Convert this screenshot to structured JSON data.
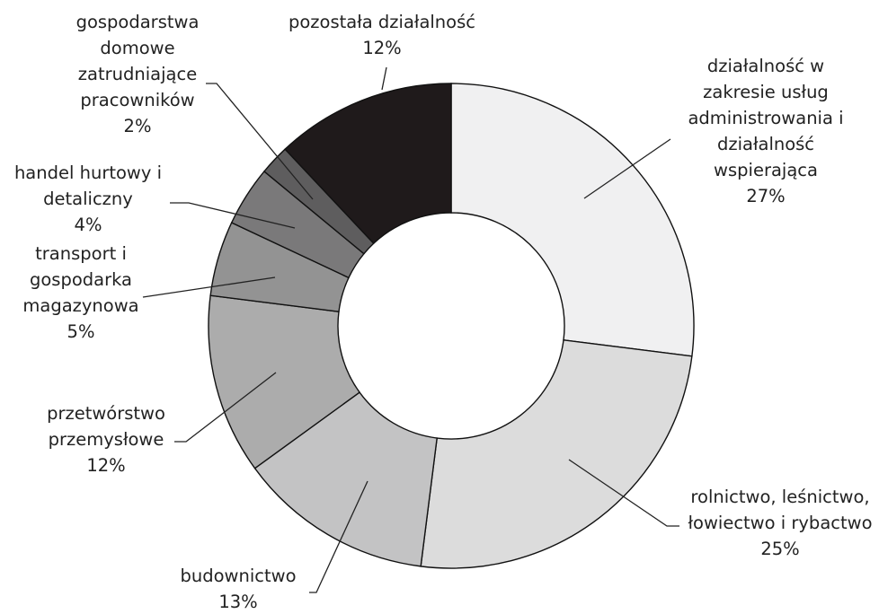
{
  "chart_data": {
    "type": "pie",
    "title": "",
    "slices": [
      {
        "label": "działalność w zakresie usług administrowania i działalność wspierająca",
        "value": 27,
        "value_label": "27%",
        "color": "#f0f0f1"
      },
      {
        "label": "rolnictwo, leśnictwo, łowiectwo i rybactwo",
        "value": 25,
        "value_label": "25%",
        "color": "#dcdcdc"
      },
      {
        "label": "budownictwo",
        "value": 13,
        "value_label": "13%",
        "color": "#c3c3c4"
      },
      {
        "label": "przetwórstwo przemysłowe",
        "value": 12,
        "value_label": "12%",
        "color": "#acacac"
      },
      {
        "label": "transport i gospodarka magazynowa",
        "value": 5,
        "value_label": "5%",
        "color": "#939393"
      },
      {
        "label": "handel hurtowy i detaliczny",
        "value": 4,
        "value_label": "4%",
        "color": "#7a797a"
      },
      {
        "label": "gospodarstwa domowe zatrudniające pracowników",
        "value": 2,
        "value_label": "2%",
        "color": "#5e5d5e"
      },
      {
        "label": "pozostała działalność",
        "value": 12,
        "value_label": "12%",
        "color": "#1f1a1b"
      }
    ],
    "label_lines": [
      [
        "działalność w",
        "zakresie usług",
        "administrowania i",
        "działalność",
        "wspierająca",
        "27%"
      ],
      [
        "rolnictwo, leśnictwo,",
        "łowiectwo i rybactwo",
        "25%"
      ],
      [
        "budownictwo",
        "13%"
      ],
      [
        "przetwórstwo",
        "przemysłowe",
        "12%"
      ],
      [
        "transport i",
        "gospodarka",
        "magazynowa",
        "5%"
      ],
      [
        "handel hurtowy i",
        "detaliczny",
        "4%"
      ],
      [
        "gospodarstwa",
        "domowe",
        "zatrudniające",
        "pracowników",
        "2%"
      ],
      [
        "pozostała działalność",
        "12%"
      ]
    ],
    "legend": "none",
    "style": "donut"
  }
}
